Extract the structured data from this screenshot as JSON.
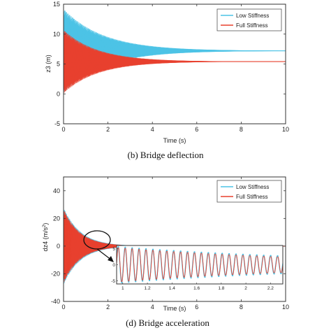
{
  "chart_data": [
    {
      "type": "line",
      "caption": "(b) Bridge deflection",
      "xlabel": "Time (s)",
      "ylabel": "z3 (m)",
      "xlim": [
        0,
        10
      ],
      "ylim": [
        -5,
        15
      ],
      "xticks": [
        0,
        2,
        4,
        6,
        8,
        10
      ],
      "yticks": [
        -5,
        0,
        5,
        10,
        15
      ],
      "legend_position": "top-right",
      "series": [
        {
          "name": "Low Stiffness",
          "color": "#4cc3e6",
          "mean": 7.2,
          "amplitude_start": 7.0,
          "decay_rate": 0.55,
          "frequency_hz": 40
        },
        {
          "name": "Full Stiffness",
          "color": "#e8402e",
          "mean": 5.4,
          "amplitude_start": 5.3,
          "decay_rate": 0.65,
          "frequency_hz": 40
        }
      ]
    },
    {
      "type": "line",
      "caption": "(d) Bridge acceleration",
      "xlabel": "Time (s)",
      "ylabel": "dz4 (m/s²)",
      "xlim": [
        0,
        10
      ],
      "ylim": [
        -40,
        50
      ],
      "xticks": [
        0,
        2,
        4,
        6,
        8,
        10
      ],
      "yticks": [
        -40,
        -20,
        0,
        20,
        40
      ],
      "legend_position": "top-right",
      "series": [
        {
          "name": "Low Stiffness",
          "color": "#4cc3e6",
          "mean": 0,
          "amplitude_start": 28,
          "decay_rate": 1.3,
          "frequency_hz": 40
        },
        {
          "name": "Full Stiffness",
          "color": "#e8402e",
          "mean": 0,
          "amplitude_start": 27,
          "decay_rate": 1.35,
          "frequency_hz": 40
        }
      ],
      "inset": {
        "xlim": [
          0.95,
          2.3
        ],
        "ylim": [
          -6,
          6
        ],
        "xticks": [
          "1",
          "1.2",
          "1.4",
          "1.6",
          "1.8",
          "2",
          "2.2"
        ],
        "yticks": [
          "5",
          "0",
          "-5"
        ],
        "cycles_shown": 24
      }
    }
  ]
}
